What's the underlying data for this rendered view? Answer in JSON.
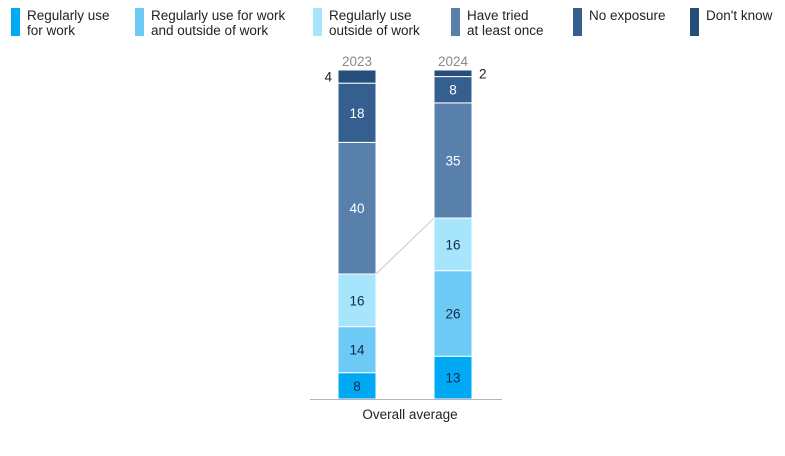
{
  "chart_data": {
    "type": "bar",
    "stacked": true,
    "category": "Overall average",
    "x": [
      "2023",
      "2024"
    ],
    "series": [
      {
        "name": "Regularly use\nfor work",
        "color": "#00a9f4",
        "text_color": "#0d2a4f",
        "values": [
          8,
          13
        ]
      },
      {
        "name": "Regularly use for work\nand outside of work",
        "color": "#6ccaf4",
        "text_color": "#0d2a4f",
        "values": [
          14,
          26
        ]
      },
      {
        "name": "Regularly use\noutside of work",
        "color": "#a6e5fb",
        "text_color": "#0d2a4f",
        "values": [
          16,
          16
        ]
      },
      {
        "name": "Have tried\nat least once",
        "color": "#5880ab",
        "text_color": "#ffffff",
        "values": [
          40,
          35
        ]
      },
      {
        "name": "No exposure",
        "color": "#345f8f",
        "text_color": "#ffffff",
        "values": [
          18,
          8
        ]
      },
      {
        "name": "Don't know",
        "color": "#264e7a",
        "text_color": "#ffffff",
        "values": [
          4,
          2
        ]
      }
    ],
    "ylim": [
      0,
      100
    ],
    "connector_after_series": 2,
    "legend_position": "top",
    "grid": false
  }
}
